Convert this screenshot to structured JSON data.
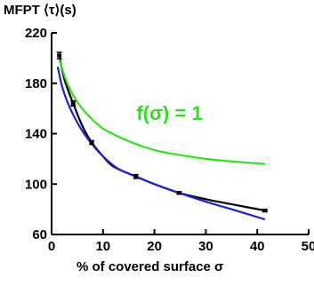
{
  "chart_data": {
    "type": "line",
    "ylabel": "MFPT ⟨τ⟩(s)",
    "xlabel": "% of covered surface σ",
    "xlim": [
      0,
      50
    ],
    "ylim": [
      60,
      220
    ],
    "x_ticks": [
      0,
      10,
      20,
      30,
      40,
      50
    ],
    "y_ticks": [
      60,
      100,
      140,
      180,
      220
    ],
    "grid": false,
    "annotation": {
      "text": "f(σ) = 1",
      "color": "#33dd22",
      "x": 16.5,
      "y": 151
    },
    "series": [
      {
        "style": "data-with-error-bars",
        "color": "#000000",
        "x": [
          1.5,
          4.2,
          7.8,
          16.4,
          24.8,
          41.5
        ],
        "y": [
          202,
          164,
          133,
          106,
          93,
          79
        ],
        "err": [
          2.5,
          2,
          1.5,
          1.5,
          1,
          1
        ]
      },
      {
        "style": "fit",
        "color": "#000000",
        "x": [
          1.5,
          2.5,
          4.2,
          6,
          7.8,
          10,
          12,
          16.4,
          20,
          24.8,
          30,
          35,
          41.5
        ],
        "y": [
          202,
          183,
          164,
          146,
          133,
          122,
          114,
          106,
          100,
          93,
          88,
          84,
          79
        ]
      },
      {
        "style": "fit",
        "color": "#2222cc",
        "x": [
          1.2,
          2,
          3,
          4.2,
          6,
          7.8,
          10,
          13,
          16.4,
          20,
          24.8,
          30,
          35,
          41.5
        ],
        "y": [
          193,
          178,
          166,
          155,
          142,
          132,
          122,
          112,
          106,
          100,
          93,
          86,
          80,
          72
        ]
      },
      {
        "style": "fit",
        "color": "#33dd22",
        "x": [
          1.5,
          2.5,
          3.5,
          5,
          7,
          10,
          15,
          20,
          25,
          30,
          35,
          41.5
        ],
        "y": [
          199,
          186,
          176,
          165,
          155,
          144,
          134,
          127,
          123,
          120,
          118,
          116
        ]
      }
    ]
  }
}
